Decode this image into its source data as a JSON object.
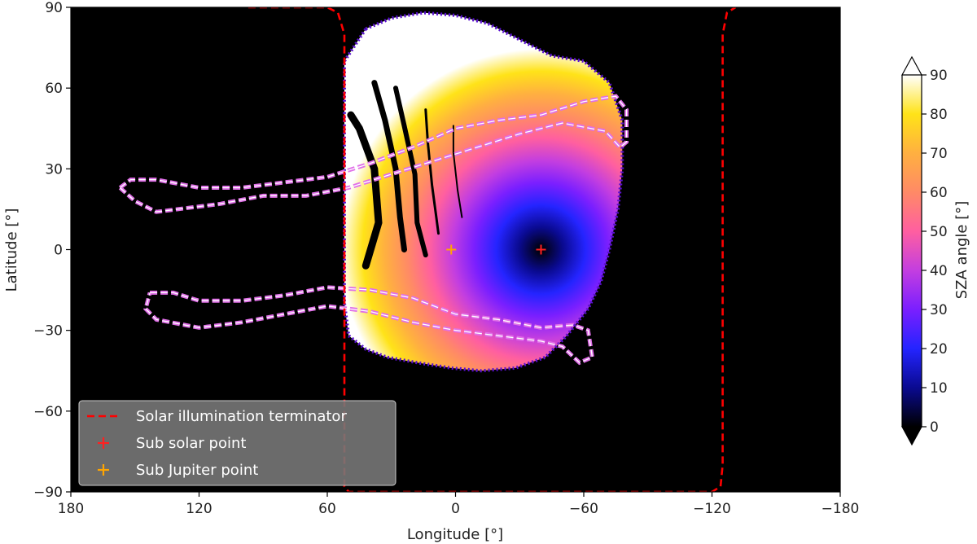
{
  "chart_data": {
    "type": "heatmap",
    "title": "",
    "xlabel": "Longitude [°]",
    "ylabel": "Latitude [°]",
    "xlim": [
      180,
      -180
    ],
    "ylim": [
      -90,
      90
    ],
    "x_ticks": [
      180,
      120,
      60,
      0,
      -60,
      -120,
      -180
    ],
    "x_tick_labels": [
      "180",
      "120",
      "60",
      "0",
      "−60",
      "−120",
      "−180"
    ],
    "y_ticks": [
      90,
      60,
      30,
      0,
      -30,
      -60,
      -90
    ],
    "y_tick_labels": [
      "90",
      "60",
      "30",
      "0",
      "−30",
      "−60",
      "−90"
    ],
    "background_color": "#000000",
    "colorbar": {
      "label": "SZA angle [°]",
      "range": [
        0,
        90
      ],
      "ticks": [
        0,
        10,
        20,
        30,
        40,
        50,
        60,
        70,
        80,
        90
      ],
      "extend": "both",
      "colormap": "gnuplot2",
      "colors": [
        "#000000",
        "#0a0a90",
        "#2424ff",
        "#7a1fff",
        "#c33ee0",
        "#ff5fa0",
        "#ff8a66",
        "#ffb040",
        "#ffe318",
        "#ffffff"
      ]
    },
    "sza_field": {
      "description_center": [
        -40,
        0
      ],
      "min_value": 0,
      "max_value": 90
    },
    "illuminated_region_outline": [
      [
        42,
        82
      ],
      [
        30,
        86
      ],
      [
        15,
        88
      ],
      [
        0,
        87
      ],
      [
        -15,
        84
      ],
      [
        -30,
        78
      ],
      [
        -45,
        72
      ],
      [
        -60,
        70
      ],
      [
        -72,
        62
      ],
      [
        -78,
        48
      ],
      [
        -78,
        30
      ],
      [
        -76,
        15
      ],
      [
        -72,
        0
      ],
      [
        -68,
        -12
      ],
      [
        -62,
        -22
      ],
      [
        -52,
        -32
      ],
      [
        -42,
        -40
      ],
      [
        -28,
        -44
      ],
      [
        -12,
        -45
      ],
      [
        2,
        -44
      ],
      [
        18,
        -42
      ],
      [
        32,
        -40
      ],
      [
        42,
        -37
      ],
      [
        50,
        -32
      ],
      [
        52,
        -20
      ],
      [
        52,
        -5
      ],
      [
        52,
        10
      ],
      [
        52,
        30
      ],
      [
        52,
        50
      ],
      [
        52,
        70
      ]
    ],
    "terminator": {
      "name": "Solar illumination terminator",
      "color": "#ff0000",
      "style": "dashed",
      "segments": [
        [
          [
            97,
            90
          ],
          [
            60,
            90
          ],
          [
            55,
            88
          ],
          [
            52,
            80
          ],
          [
            52,
            -88
          ],
          [
            50,
            -90
          ],
          [
            -10,
            -90
          ],
          [
            -120,
            -90
          ],
          [
            -124,
            -88
          ],
          [
            -125,
            -80
          ],
          [
            -125,
            80
          ],
          [
            -127,
            88
          ],
          [
            -131,
            90
          ]
        ]
      ]
    },
    "contours": {
      "color": "#e070e8",
      "style": "double-dashed",
      "lines": [
        [
          [
            157,
            23
          ],
          [
            152,
            26
          ],
          [
            140,
            26
          ],
          [
            120,
            23
          ],
          [
            100,
            23
          ],
          [
            80,
            25
          ],
          [
            60,
            27
          ],
          [
            40,
            32
          ],
          [
            20,
            38
          ],
          [
            0,
            45
          ],
          [
            -20,
            48
          ],
          [
            -40,
            50
          ],
          [
            -60,
            55
          ],
          [
            -75,
            57
          ],
          [
            -80,
            52
          ],
          [
            -80,
            40
          ],
          [
            -77,
            38
          ],
          [
            -70,
            44
          ],
          [
            -50,
            47
          ],
          [
            -30,
            43
          ],
          [
            -10,
            38
          ],
          [
            10,
            33
          ],
          [
            30,
            28
          ],
          [
            50,
            23
          ],
          [
            70,
            20
          ],
          [
            90,
            20
          ],
          [
            110,
            17
          ],
          [
            130,
            15
          ],
          [
            140,
            14
          ],
          [
            150,
            18
          ],
          [
            157,
            23
          ]
        ],
        [
          [
            143,
            -16
          ],
          [
            132,
            -16
          ],
          [
            120,
            -19
          ],
          [
            100,
            -19
          ],
          [
            80,
            -17
          ],
          [
            60,
            -14
          ],
          [
            40,
            -15
          ],
          [
            20,
            -18
          ],
          [
            0,
            -24
          ],
          [
            -20,
            -26
          ],
          [
            -40,
            -29
          ],
          [
            -55,
            -28
          ],
          [
            -62,
            -30
          ],
          [
            -64,
            -40
          ],
          [
            -58,
            -42
          ],
          [
            -50,
            -36
          ],
          [
            -40,
            -34
          ],
          [
            -20,
            -32
          ],
          [
            0,
            -30
          ],
          [
            20,
            -27
          ],
          [
            40,
            -23
          ],
          [
            60,
            -21
          ],
          [
            80,
            -24
          ],
          [
            100,
            -27
          ],
          [
            120,
            -29
          ],
          [
            140,
            -26
          ],
          [
            145,
            -22
          ],
          [
            143,
            -16
          ]
        ]
      ]
    },
    "dark_arcs": [
      [
        [
          49,
          50
        ],
        [
          45,
          45
        ],
        [
          38,
          30
        ],
        [
          36,
          10
        ],
        [
          42,
          -6
        ]
      ],
      [
        [
          38,
          62
        ],
        [
          33,
          48
        ],
        [
          28,
          30
        ],
        [
          26,
          12
        ],
        [
          24,
          0
        ]
      ],
      [
        [
          28,
          60
        ],
        [
          24,
          46
        ],
        [
          19,
          28
        ],
        [
          18,
          10
        ],
        [
          14,
          -2
        ]
      ],
      [
        [
          14,
          52
        ],
        [
          13,
          40
        ],
        [
          11,
          24
        ],
        [
          9,
          12
        ],
        [
          8,
          6
        ]
      ],
      [
        [
          1,
          46
        ],
        [
          1,
          36
        ],
        [
          -1,
          22
        ],
        [
          -3,
          12
        ]
      ]
    ],
    "points": [
      {
        "name": "Sub solar point",
        "x": -40,
        "y": 0,
        "color": "#ff2020",
        "marker": "+"
      },
      {
        "name": "Sub Jupiter point",
        "x": 2,
        "y": 0,
        "color": "#ffa500",
        "marker": "+"
      }
    ],
    "legend": {
      "placement": "lower-left",
      "entries": [
        "Solar illumination terminator",
        "Sub solar point",
        "Sub Jupiter point"
      ]
    }
  }
}
